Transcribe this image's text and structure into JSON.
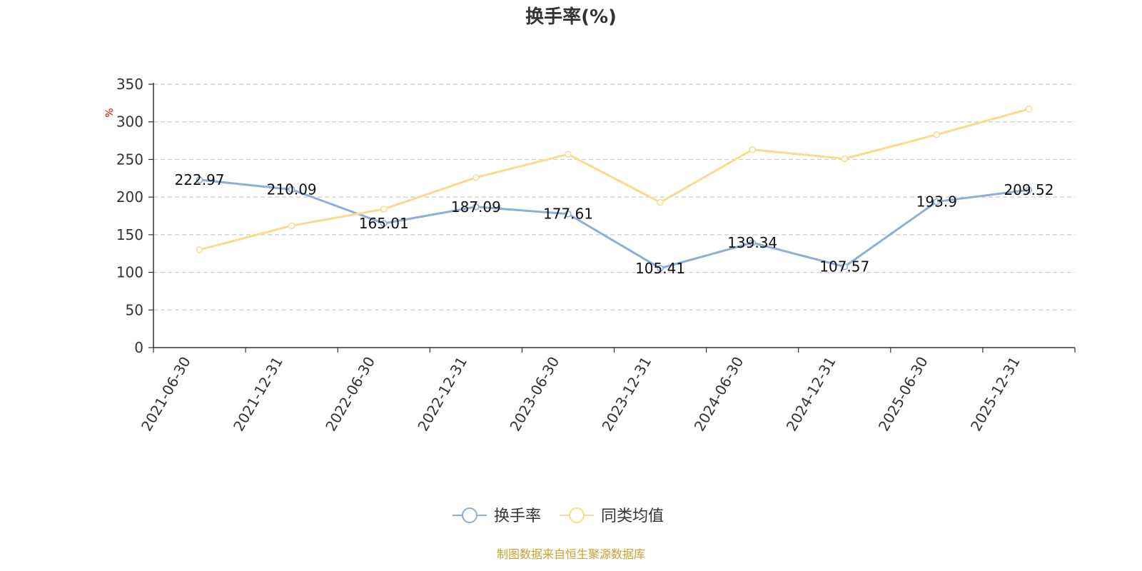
{
  "chart_data": {
    "type": "line",
    "title": "换手率(%)",
    "ylabel": "%",
    "xlabel": "",
    "ylim": [
      0,
      350
    ],
    "yticks": [
      0,
      50,
      100,
      150,
      200,
      250,
      300,
      350
    ],
    "grid": true,
    "legend_position": "bottom-center",
    "categories": [
      "2021-06-30",
      "2021-12-31",
      "2022-06-30",
      "2022-12-31",
      "2023-06-30",
      "2023-12-31",
      "2024-06-30",
      "2024-12-31",
      "2025-06-30",
      "2025-12-31"
    ],
    "series": [
      {
        "name": "换手率",
        "color": "#8eaed8",
        "show_labels": true,
        "values": [
          222.97,
          210.09,
          165.01,
          187.09,
          177.61,
          105.41,
          139.34,
          107.57,
          193.9,
          209.52
        ]
      },
      {
        "name": "同类均值",
        "color": "#fbd98f",
        "show_labels": false,
        "values": [
          130,
          162,
          184,
          226,
          257,
          193,
          263,
          251,
          283,
          317
        ]
      }
    ]
  },
  "source_text": "制图数据来自恒生聚源数据库"
}
